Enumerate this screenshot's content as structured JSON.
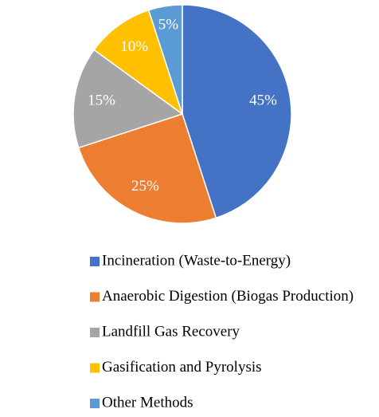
{
  "chart_data": {
    "type": "pie",
    "categories": [
      "Incineration (Waste-to-Energy)",
      "Anaerobic Digestion (Biogas Production)",
      "Landfill Gas Recovery",
      "Gasification and Pyrolysis",
      "Other Methods"
    ],
    "values": [
      45,
      25,
      15,
      10,
      5
    ],
    "value_labels": [
      "45%",
      "25%",
      "15%",
      "10%",
      "5%"
    ],
    "colors": [
      "#4472c4",
      "#ed7d31",
      "#a5a5a5",
      "#ffc000",
      "#5b9bd5"
    ],
    "legend": "bottom"
  }
}
